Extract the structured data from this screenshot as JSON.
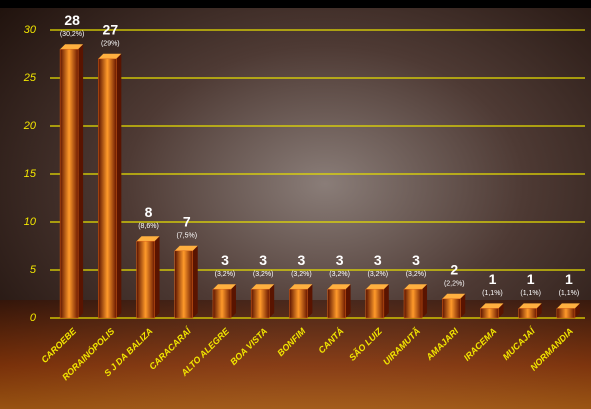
{
  "chart_data": {
    "type": "bar",
    "categories": [
      "CAROEBE",
      "RORAINÓPOLIS",
      "S J DA BALIZA",
      "CARACARAÍ",
      "ALTO ALEGRE",
      "BOA VISTA",
      "BONFIM",
      "CANTÁ",
      "SÃO LUIZ",
      "UIRAMUTÃ",
      "AMAJARI",
      "IRACEMA",
      "MUCAJAÍ",
      "NORMANDIA"
    ],
    "values": [
      28,
      27,
      8,
      7,
      3,
      3,
      3,
      3,
      3,
      3,
      2,
      1,
      1,
      1
    ],
    "percent_labels": [
      "(30,2%)",
      "(29%)",
      "(8,6%)",
      "(7,5%)",
      "(3,2%)",
      "(3,2%)",
      "(3,2%)",
      "(3,2%)",
      "(3,2%)",
      "(3,2%)",
      "(2,2%)",
      "(1,1%)",
      "(1,1%)",
      "(1,1%)"
    ],
    "color": "#e0661a",
    "ylim": [
      0,
      30
    ],
    "yticks": [
      0,
      5,
      10,
      15,
      20,
      25,
      30
    ],
    "grid": true
  }
}
